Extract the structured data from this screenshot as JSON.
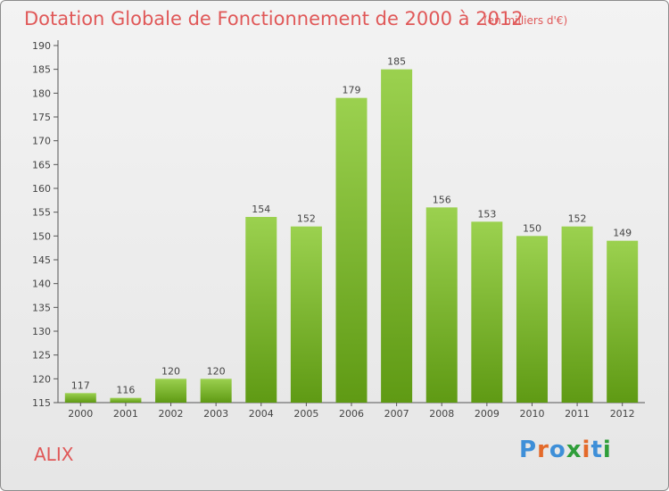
{
  "header": {
    "title": "Dotation Globale de Fonctionnement de 2000 à 2012",
    "subtitle": "(en milliers d'€)"
  },
  "footer": {
    "place": "ALIX",
    "logo_text": "Proxiti"
  },
  "colors": {
    "title": "#e05858",
    "bar_light": "#9bd14f",
    "bar_dark": "#5f9a14",
    "axis": "#555555",
    "logo_letters": [
      "#3e8fd8",
      "#e46a2a",
      "#3e8fd8",
      "#2f9e3a",
      "#e46a2a",
      "#3e8fd8",
      "#2f9e3a"
    ]
  },
  "chart_data": {
    "type": "bar",
    "categories": [
      "2000",
      "2001",
      "2002",
      "2003",
      "2004",
      "2005",
      "2006",
      "2007",
      "2008",
      "2009",
      "2010",
      "2011",
      "2012"
    ],
    "values": [
      117,
      116,
      120,
      120,
      154,
      152,
      179,
      185,
      156,
      153,
      150,
      152,
      149
    ],
    "data_labels": [
      "117",
      "116",
      "120",
      "120",
      "154",
      "152",
      "179",
      "185",
      "156",
      "153",
      "150",
      "152",
      "149"
    ],
    "yticks": [
      "115",
      "120",
      "125",
      "130",
      "135",
      "140",
      "145",
      "150",
      "155",
      "160",
      "165",
      "170",
      "175",
      "180",
      "185",
      "190"
    ],
    "ylim": [
      115,
      190
    ],
    "grid": false
  }
}
